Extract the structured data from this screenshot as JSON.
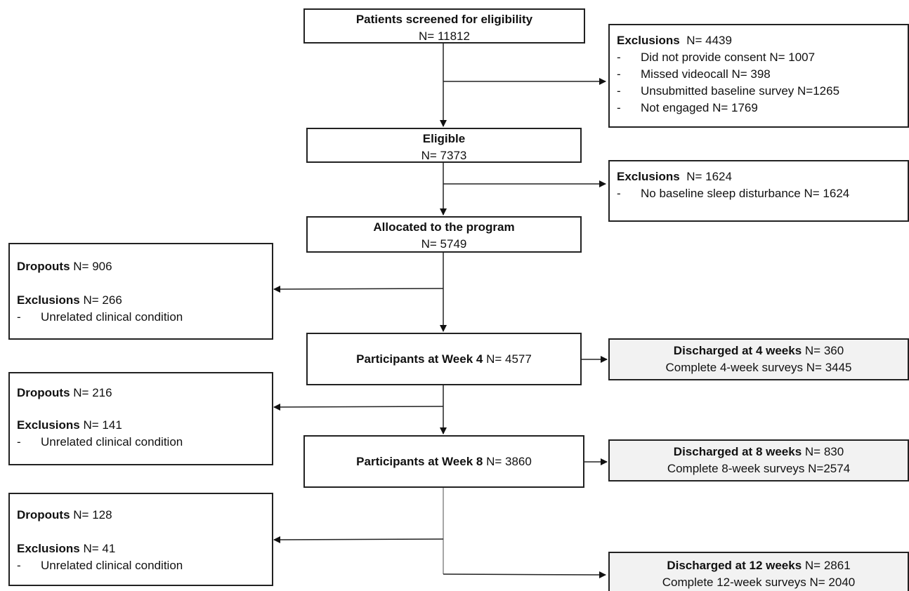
{
  "screened": {
    "title": "Patients screened for eligibility",
    "count": "N= 11812"
  },
  "exclusions1": {
    "title": "Exclusions",
    "count": "N= 4439",
    "items": [
      "Did not provide consent N= 1007",
      "Missed videocall N= 398",
      "Unsubmitted baseline survey N=1265",
      "Not engaged N= 1769"
    ]
  },
  "eligible": {
    "title": "Eligible",
    "count": "N= 7373"
  },
  "exclusions2": {
    "title": "Exclusions",
    "count": "N= 1624",
    "items": [
      "No baseline sleep disturbance N= 1624"
    ]
  },
  "allocated": {
    "title": "Allocated to the program",
    "count": "N= 5749"
  },
  "dropouts1": {
    "dropouts_title": "Dropouts",
    "dropouts_count": "N= 906",
    "excl_title": "Exclusions",
    "excl_count": "N= 266",
    "item": "Unrelated clinical condition"
  },
  "week4": {
    "title": "Participants at Week 4",
    "count": "N= 4577"
  },
  "discharged4": {
    "title": "Discharged at 4 weeks",
    "count": "N= 360",
    "line2": "Complete 4-week surveys N= 3445"
  },
  "dropouts2": {
    "dropouts_title": "Dropouts",
    "dropouts_count": "N= 216",
    "excl_title": "Exclusions",
    "excl_count": "N= 141",
    "item": "Unrelated clinical condition"
  },
  "week8": {
    "title": "Participants at Week 8",
    "count": "N= 3860"
  },
  "discharged8": {
    "title": "Discharged at 8 weeks",
    "count": "N= 830",
    "line2": "Complete 8-week surveys N=2574"
  },
  "dropouts3": {
    "dropouts_title": "Dropouts",
    "dropouts_count": "N= 128",
    "excl_title": "Exclusions",
    "excl_count": "N= 41",
    "item": "Unrelated clinical condition"
  },
  "discharged12": {
    "title": "Discharged at 12 weeks",
    "count": "N= 2861",
    "line2": "Complete 12-week surveys N= 2040"
  },
  "dash": "-"
}
